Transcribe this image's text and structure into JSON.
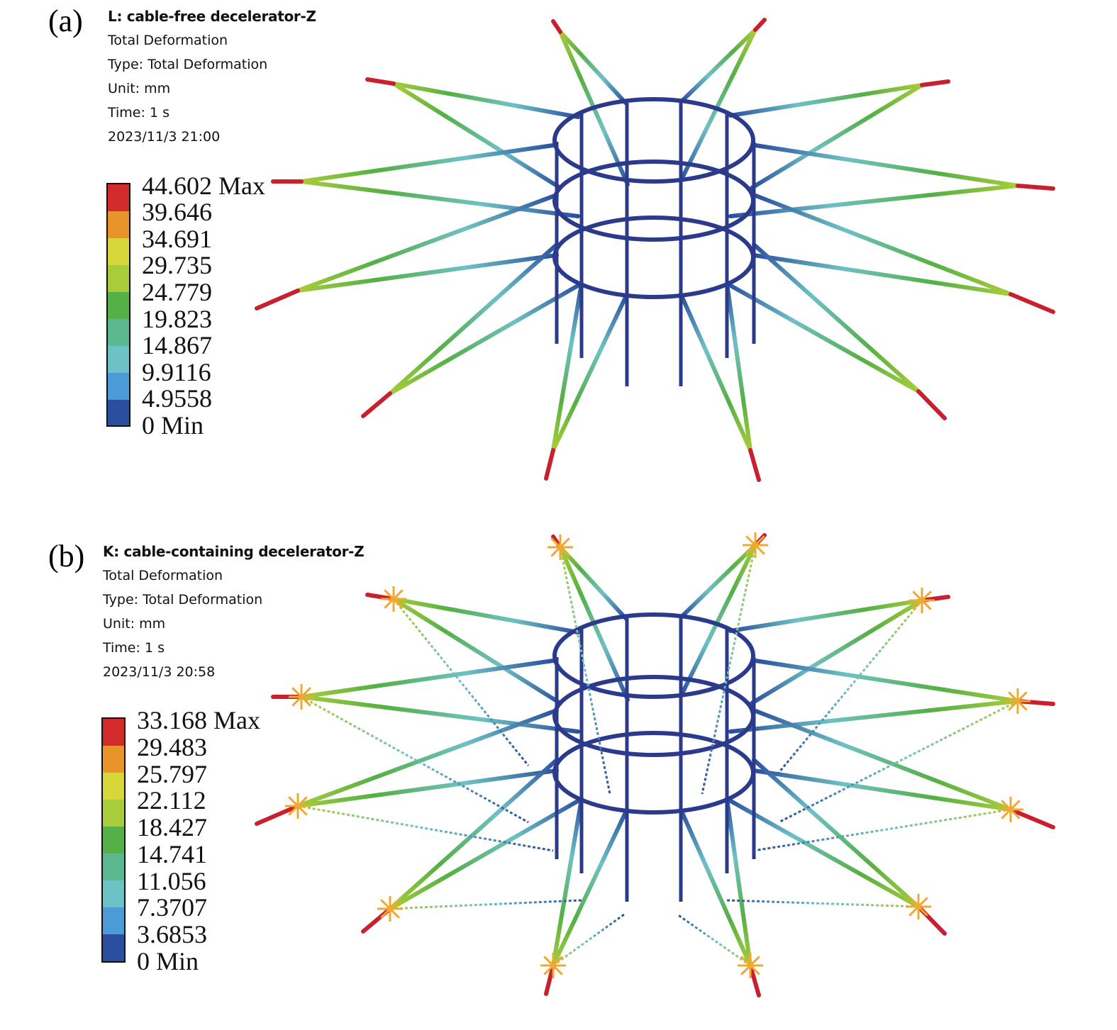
{
  "panels": [
    {
      "label": "(a)",
      "title": "L: cable-free decelerator-Z",
      "result": "Total Deformation",
      "type": "Type: Total Deformation",
      "unit": "Unit: mm",
      "time": "Time: 1 s",
      "date": "2023/11/3 21:00",
      "legend": [
        "44.602 Max",
        "39.646",
        "34.691",
        "29.735",
        "24.779",
        "19.823",
        "14.867",
        "9.9116",
        "4.9558",
        "0 Min"
      ],
      "has_cables": false
    },
    {
      "label": "(b)",
      "title": "K: cable-containing decelerator-Z",
      "result": "Total Deformation",
      "type": "Type: Total Deformation",
      "unit": "Unit: mm",
      "time": "Time: 1 s",
      "date": "2023/11/3 20:58",
      "legend": [
        "33.168 Max",
        "29.483",
        "25.797",
        "22.112",
        "18.427",
        "14.741",
        "11.056",
        "7.3707",
        "3.6853",
        "0 Min"
      ],
      "has_cables": true
    }
  ],
  "colormap": [
    "#d22b2b",
    "#e8942a",
    "#d7d63a",
    "#a9cc3a",
    "#55b045",
    "#5cb88e",
    "#6ec1c4",
    "#4a9bd6",
    "#2a4f9e"
  ],
  "colors": {
    "structure": "#2c3a8c",
    "marker": "#f0a830",
    "tip": "#c8202f"
  }
}
